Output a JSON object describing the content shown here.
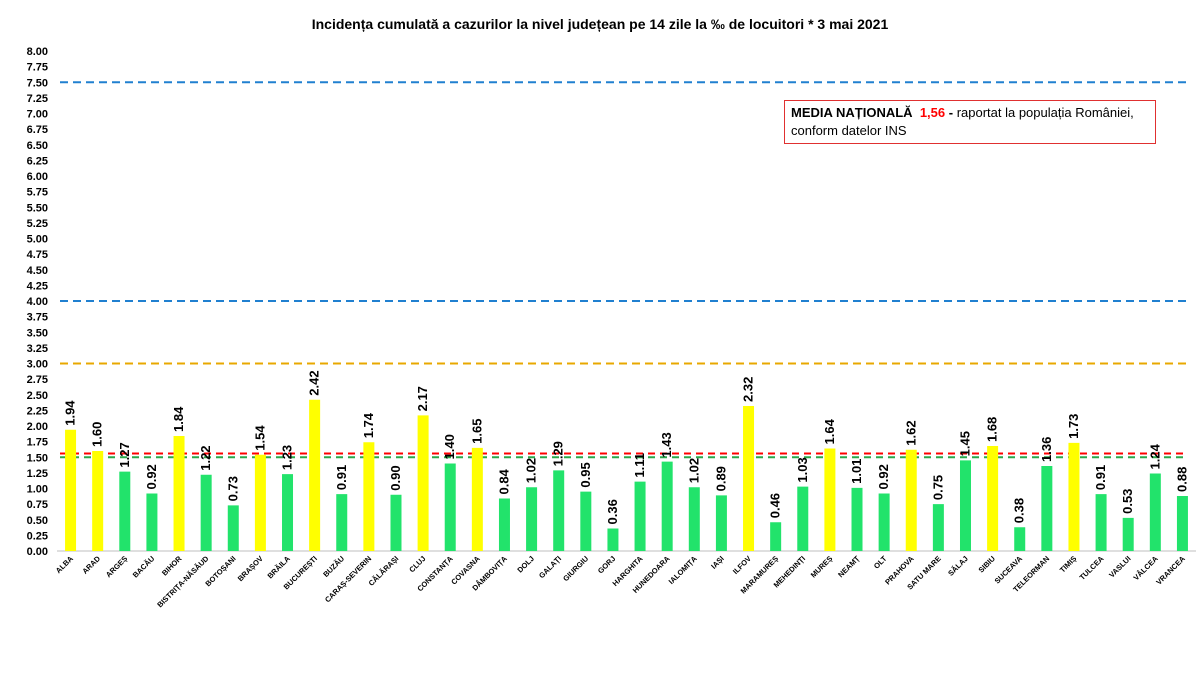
{
  "chart_data": {
    "type": "bar",
    "title": "Incidența cumulată a cazurilor la nivel județean pe 14 zile la ‰ de locuitori *   3 mai 2021",
    "ylim": [
      0,
      8
    ],
    "yticks": [
      "0.00",
      "0.25",
      "0.50",
      "0.75",
      "1.00",
      "1.25",
      "1.50",
      "1.75",
      "2.00",
      "2.25",
      "2.50",
      "2.75",
      "3.00",
      "3.25",
      "3.50",
      "3.75",
      "4.00",
      "4.25",
      "4.50",
      "4.75",
      "5.00",
      "5.25",
      "5.50",
      "5.75",
      "6.00",
      "6.25",
      "6.50",
      "6.75",
      "7.00",
      "7.25",
      "7.50",
      "7.75",
      "8.00"
    ],
    "categories": [
      "ALBA",
      "ARAD",
      "ARGEȘ",
      "BACĂU",
      "BIHOR",
      "BISTRIȚA-NĂSĂUD",
      "BOTOȘANI",
      "BRAȘOV",
      "BRĂILA",
      "BUCUREȘTI",
      "BUZĂU",
      "CARAȘ-SEVERIN",
      "CĂLĂRAȘI",
      "CLUJ",
      "CONSTANȚA",
      "COVASNA",
      "DÂMBOVIȚA",
      "DOLJ",
      "GALAȚI",
      "GIURGIU",
      "GORJ",
      "HARGHITA",
      "HUNEDOARA",
      "IALOMIȚA",
      "IAȘI",
      "ILFOV",
      "MARAMUREȘ",
      "MEHEDINȚI",
      "MUREȘ",
      "NEAMȚ",
      "OLT",
      "PRAHOVA",
      "SATU MARE",
      "SĂLAJ",
      "SIBIU",
      "SUCEAVA",
      "TELEORMAN",
      "TIMIȘ",
      "TULCEA",
      "VASLUI",
      "VÂLCEA",
      "VRANCEA"
    ],
    "values": [
      1.94,
      1.6,
      1.27,
      0.92,
      1.84,
      1.22,
      0.73,
      1.54,
      1.23,
      2.42,
      0.91,
      1.74,
      0.9,
      2.17,
      1.4,
      1.65,
      0.84,
      1.02,
      1.29,
      0.95,
      0.36,
      1.11,
      1.43,
      1.02,
      0.89,
      2.32,
      0.46,
      1.03,
      1.64,
      1.01,
      0.92,
      1.62,
      0.75,
      1.45,
      1.68,
      0.38,
      1.36,
      1.73,
      0.91,
      0.53,
      1.24,
      0.88
    ],
    "value_labels": [
      "1.94",
      "1.60",
      "1.27",
      "0.92",
      "1.84",
      "1.22",
      "0.73",
      "1.54",
      "1.23",
      "2.42",
      "0.91",
      "1.74",
      "0.90",
      "2.17",
      "1.40",
      "1.65",
      "0.84",
      "1.02",
      "1.29",
      "0.95",
      "0.36",
      "1.11",
      "1.43",
      "1.02",
      "0.89",
      "2.32",
      "0.46",
      "1.03",
      "1.64",
      "1.01",
      "0.92",
      "1.62",
      "0.75",
      "1.45",
      "1.68",
      "0.38",
      "1.36",
      "1.73",
      "0.91",
      "0.53",
      "1.24",
      "0.88"
    ],
    "bar_colors": {
      "below_1.5": "#22e36b",
      "1.5_to_3": "#ffff00"
    },
    "reference_lines": [
      {
        "value": 7.5,
        "color": "#2080d0",
        "style": "dashed"
      },
      {
        "value": 4.0,
        "color": "#2080d0",
        "style": "dashed"
      },
      {
        "value": 3.0,
        "color": "#e8a800",
        "style": "dashed"
      },
      {
        "value": 1.56,
        "color": "#ff0000",
        "style": "dashed"
      },
      {
        "value": 1.5,
        "color": "#2ba84a",
        "style": "dashed"
      }
    ],
    "grid": false,
    "legend_placement": "top-right"
  },
  "legend": {
    "label_bold": "MEDIA NAȚIONALĂ",
    "value": "1,56",
    "separator": " - ",
    "text_line1": "raportat la populația României,",
    "text_line2": "conform datelor INS"
  }
}
